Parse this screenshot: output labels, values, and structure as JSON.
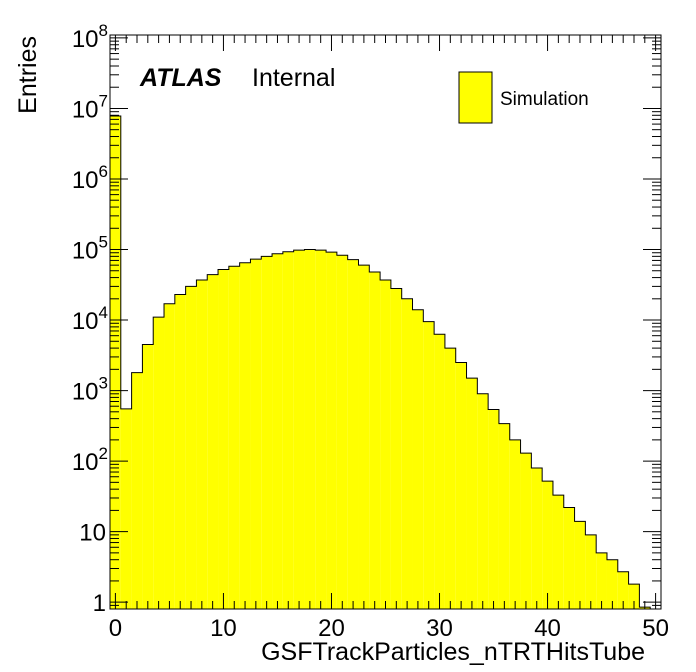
{
  "chart_data": {
    "type": "bar",
    "style": "step-filled histogram",
    "xlabel": "GSFTrackParticles_nTRTHitsTube",
    "ylabel": "Entries",
    "xlim": [
      -0.5,
      50.5
    ],
    "ylim": [
      0.8,
      110000000
    ],
    "y_scale": "log",
    "x_ticks": [
      0,
      10,
      20,
      30,
      40,
      50
    ],
    "y_ticks": [
      {
        "value": 1,
        "label": "1"
      },
      {
        "value": 10,
        "label": "10"
      },
      {
        "value": 100,
        "base": "10",
        "exp": "2"
      },
      {
        "value": 1000,
        "base": "10",
        "exp": "3"
      },
      {
        "value": 10000,
        "base": "10",
        "exp": "4"
      },
      {
        "value": 100000,
        "base": "10",
        "exp": "5"
      },
      {
        "value": 1000000,
        "base": "10",
        "exp": "6"
      },
      {
        "value": 10000000,
        "base": "10",
        "exp": "7"
      },
      {
        "value": 100000000,
        "base": "10",
        "exp": "8"
      }
    ],
    "bin_width": 1,
    "bin_centers": [
      0,
      1,
      2,
      3,
      4,
      5,
      6,
      7,
      8,
      9,
      10,
      11,
      12,
      13,
      14,
      15,
      16,
      17,
      18,
      19,
      20,
      21,
      22,
      23,
      24,
      25,
      26,
      27,
      28,
      29,
      30,
      31,
      32,
      33,
      34,
      35,
      36,
      37,
      38,
      39,
      40,
      41,
      42,
      43,
      44,
      45,
      46,
      47,
      48,
      49
    ],
    "series": [
      {
        "name": "Simulation",
        "color": "#ffff00",
        "values": [
          7800000,
          550,
          1800,
          4500,
          11000,
          17000,
          23000,
          30000,
          37000,
          44000,
          52000,
          58000,
          65000,
          73000,
          80000,
          87000,
          93000,
          98000,
          100000,
          98000,
          92000,
          83000,
          72000,
          60000,
          48000,
          37000,
          28000,
          20000,
          14000,
          9500,
          6300,
          4000,
          2500,
          1500,
          900,
          540,
          340,
          200,
          130,
          80,
          52,
          33,
          22,
          14,
          9,
          5,
          4,
          2.7,
          1.8,
          0.85
        ]
      }
    ],
    "legend": {
      "entries": [
        "Simulation"
      ],
      "placement": "top-right"
    },
    "grid": false
  },
  "labels": {
    "atlas": "ATLAS",
    "internal": "Internal"
  }
}
